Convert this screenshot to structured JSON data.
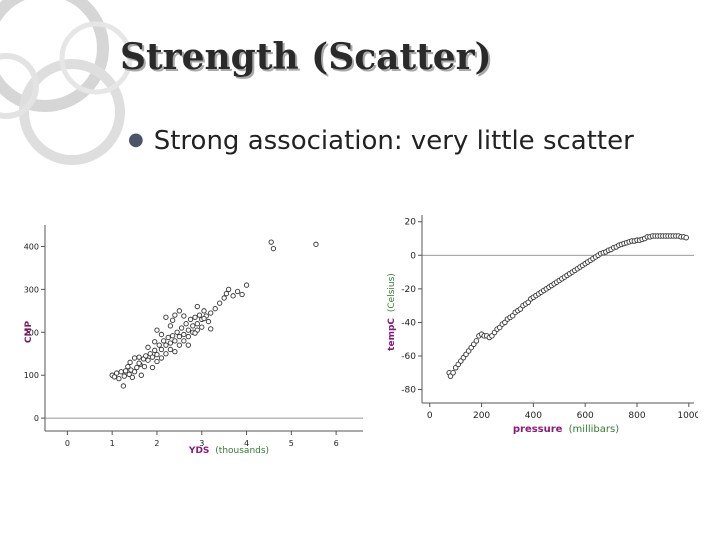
{
  "slide": {
    "title": "Strength (Scatter)",
    "bullet": "Strong association: very little scatter"
  },
  "colors": {
    "ylabel_var": "#7a1d5c",
    "xlabel_var": "#8a1a7a",
    "units": "#2f7d2f",
    "title_shadow": "#a9a9a9",
    "ring": "#d2d2d2"
  },
  "icons": {
    "bullet": "round-bullet-icon"
  },
  "chart_data": [
    {
      "type": "scatter",
      "xlabel": "YDS",
      "xunits": "(thousands)",
      "ylabel": "CMP",
      "ticks_x": [
        "0",
        "1",
        "2",
        "3",
        "4",
        "5",
        "6"
      ],
      "ticks_y": [
        "0",
        "100",
        "200",
        "300",
        "400"
      ],
      "xlim": [
        -0.5,
        6.6
      ],
      "ylim": [
        -30,
        450
      ],
      "grid": false,
      "points": [
        [
          1.0,
          100
        ],
        [
          1.05,
          96
        ],
        [
          1.1,
          105
        ],
        [
          1.15,
          92
        ],
        [
          1.2,
          108
        ],
        [
          1.25,
          75
        ],
        [
          1.27,
          98
        ],
        [
          1.3,
          110
        ],
        [
          1.35,
          120
        ],
        [
          1.38,
          102
        ],
        [
          1.4,
          130
        ],
        [
          1.42,
          112
        ],
        [
          1.45,
          95
        ],
        [
          1.5,
          140
        ],
        [
          1.5,
          108
        ],
        [
          1.55,
          118
        ],
        [
          1.6,
          142
        ],
        [
          1.62,
          125
        ],
        [
          1.65,
          100
        ],
        [
          1.7,
          138
        ],
        [
          1.72,
          120
        ],
        [
          1.75,
          145
        ],
        [
          1.8,
          135
        ],
        [
          1.85,
          150
        ],
        [
          1.9,
          142
        ],
        [
          1.9,
          118
        ],
        [
          1.95,
          158
        ],
        [
          2.0,
          148
        ],
        [
          2.0,
          132
        ],
        [
          2.05,
          170
        ],
        [
          2.1,
          160
        ],
        [
          2.1,
          140
        ],
        [
          2.15,
          180
        ],
        [
          2.2,
          170
        ],
        [
          2.2,
          150
        ],
        [
          2.25,
          188
        ],
        [
          2.3,
          175
        ],
        [
          2.3,
          160
        ],
        [
          2.35,
          192
        ],
        [
          2.4,
          180
        ],
        [
          2.4,
          155
        ],
        [
          2.45,
          200
        ],
        [
          2.5,
          190
        ],
        [
          2.5,
          170
        ],
        [
          2.55,
          210
        ],
        [
          2.6,
          195
        ],
        [
          2.6,
          180
        ],
        [
          2.65,
          220
        ],
        [
          2.7,
          205
        ],
        [
          2.7,
          190
        ],
        [
          2.75,
          230
        ],
        [
          2.8,
          215
        ],
        [
          2.8,
          200
        ],
        [
          2.85,
          235
        ],
        [
          2.9,
          220
        ],
        [
          2.9,
          205
        ],
        [
          2.95,
          240
        ],
        [
          3.0,
          230
        ],
        [
          3.0,
          212
        ],
        [
          3.05,
          250
        ],
        [
          3.1,
          238
        ],
        [
          3.15,
          225
        ],
        [
          3.2,
          245
        ],
        [
          3.3,
          255
        ],
        [
          3.4,
          268
        ],
        [
          3.5,
          280
        ],
        [
          3.55,
          290
        ],
        [
          3.6,
          300
        ],
        [
          3.7,
          285
        ],
        [
          3.8,
          295
        ],
        [
          3.9,
          288
        ],
        [
          4.0,
          310
        ],
        [
          2.3,
          215
        ],
        [
          2.2,
          235
        ],
        [
          2.0,
          205
        ],
        [
          2.5,
          250
        ],
        [
          2.7,
          170
        ],
        [
          1.8,
          165
        ],
        [
          2.9,
          260
        ],
        [
          3.2,
          208
        ],
        [
          1.95,
          178
        ],
        [
          2.35,
          228
        ],
        [
          2.6,
          238
        ],
        [
          2.1,
          195
        ],
        [
          1.6,
          128
        ],
        [
          2.4,
          240
        ],
        [
          3.05,
          232
        ],
        [
          2.85,
          198
        ],
        [
          4.55,
          410
        ],
        [
          4.6,
          395
        ],
        [
          5.55,
          405
        ]
      ]
    },
    {
      "type": "scatter",
      "xlabel": "pressure",
      "xunits": "(millibars)",
      "ylabel": "tempC",
      "yunits": "(Celsius)",
      "ticks_x": [
        "0",
        "200",
        "400",
        "600",
        "800",
        "1000"
      ],
      "ticks_y": [
        "-80",
        "-60",
        "-40",
        "-20",
        "0",
        "20"
      ],
      "xlim": [
        -30,
        1020
      ],
      "ylim": [
        -88,
        24
      ],
      "grid": false,
      "points": [
        [
          75,
          -70
        ],
        [
          80,
          -72
        ],
        [
          90,
          -70
        ],
        [
          100,
          -67
        ],
        [
          110,
          -65
        ],
        [
          120,
          -63
        ],
        [
          130,
          -61
        ],
        [
          140,
          -59
        ],
        [
          150,
          -57
        ],
        [
          160,
          -55
        ],
        [
          170,
          -53
        ],
        [
          180,
          -51
        ],
        [
          190,
          -48
        ],
        [
          200,
          -47
        ],
        [
          210,
          -48
        ],
        [
          220,
          -48
        ],
        [
          230,
          -49
        ],
        [
          240,
          -48
        ],
        [
          250,
          -46
        ],
        [
          260,
          -44
        ],
        [
          270,
          -43
        ],
        [
          280,
          -41
        ],
        [
          290,
          -40
        ],
        [
          300,
          -38
        ],
        [
          310,
          -37
        ],
        [
          320,
          -36
        ],
        [
          330,
          -34
        ],
        [
          340,
          -33
        ],
        [
          350,
          -32
        ],
        [
          360,
          -30
        ],
        [
          370,
          -29
        ],
        [
          380,
          -28
        ],
        [
          390,
          -26
        ],
        [
          400,
          -25
        ],
        [
          410,
          -24
        ],
        [
          420,
          -23
        ],
        [
          430,
          -22
        ],
        [
          440,
          -21
        ],
        [
          450,
          -20
        ],
        [
          460,
          -19
        ],
        [
          470,
          -18
        ],
        [
          480,
          -17
        ],
        [
          490,
          -16
        ],
        [
          500,
          -15
        ],
        [
          510,
          -14
        ],
        [
          520,
          -13
        ],
        [
          530,
          -12
        ],
        [
          540,
          -11
        ],
        [
          550,
          -10
        ],
        [
          560,
          -9
        ],
        [
          570,
          -8
        ],
        [
          580,
          -7
        ],
        [
          590,
          -6
        ],
        [
          600,
          -5
        ],
        [
          610,
          -4
        ],
        [
          620,
          -3
        ],
        [
          630,
          -2
        ],
        [
          640,
          -1
        ],
        [
          650,
          0
        ],
        [
          660,
          1
        ],
        [
          670,
          1.5
        ],
        [
          680,
          2
        ],
        [
          690,
          3
        ],
        [
          700,
          3.5
        ],
        [
          710,
          4.5
        ],
        [
          720,
          5
        ],
        [
          730,
          6
        ],
        [
          740,
          6.5
        ],
        [
          750,
          7
        ],
        [
          760,
          7.5
        ],
        [
          770,
          8
        ],
        [
          780,
          8.5
        ],
        [
          790,
          8.5
        ],
        [
          800,
          9
        ],
        [
          810,
          9
        ],
        [
          820,
          9.5
        ],
        [
          830,
          10
        ],
        [
          840,
          11
        ],
        [
          850,
          11
        ],
        [
          860,
          11.5
        ],
        [
          870,
          11.5
        ],
        [
          880,
          11.5
        ],
        [
          890,
          11.5
        ],
        [
          900,
          11.5
        ],
        [
          910,
          11.5
        ],
        [
          920,
          11.5
        ],
        [
          930,
          11.5
        ],
        [
          940,
          11.5
        ],
        [
          950,
          11.5
        ],
        [
          960,
          11.5
        ],
        [
          970,
          11
        ],
        [
          980,
          11
        ],
        [
          990,
          10.5
        ]
      ]
    }
  ]
}
